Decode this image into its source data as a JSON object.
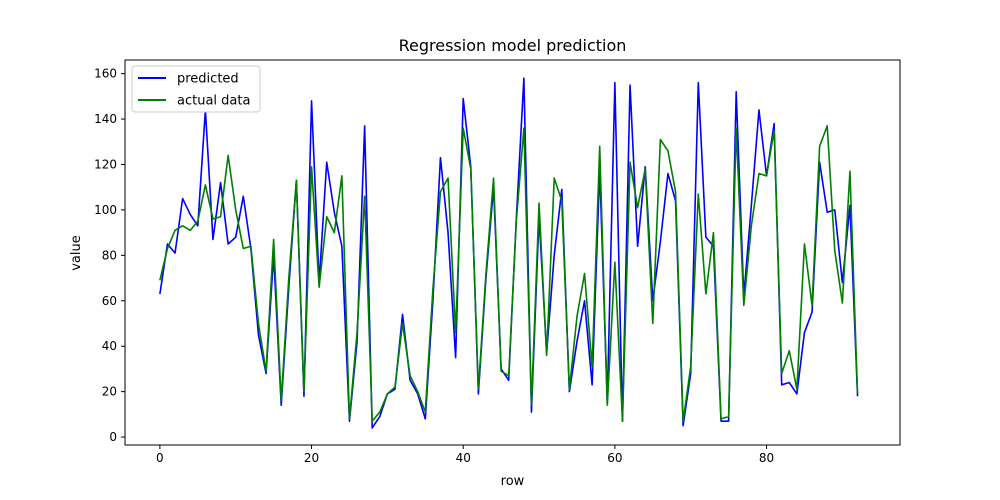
{
  "chart_data": {
    "type": "line",
    "title": "Regression model prediction",
    "xlabel": "row",
    "ylabel": "value",
    "xlim": [
      -4.6,
      97.6
    ],
    "ylim": [
      -3.5,
      166
    ],
    "xticks": [
      0,
      20,
      40,
      60,
      80
    ],
    "yticks": [
      0,
      20,
      40,
      60,
      80,
      100,
      120,
      140,
      160
    ],
    "grid": false,
    "legend_position": "top-left",
    "series": [
      {
        "name": "predicted",
        "color": "#0000ff",
        "values": [
          63,
          85,
          81,
          105,
          98,
          93,
          144,
          87,
          112,
          85,
          88,
          106,
          83,
          45,
          28,
          80,
          14,
          66,
          113,
          18,
          148,
          68,
          121,
          99,
          84,
          7,
          42,
          137,
          4,
          9,
          19,
          21,
          54,
          25,
          19,
          8,
          60,
          123,
          90,
          35,
          149,
          119,
          19,
          70,
          110,
          30,
          25,
          96,
          158,
          11,
          97,
          37,
          80,
          109,
          20,
          42,
          60,
          23,
          118,
          15,
          156,
          7,
          155,
          84,
          119,
          60,
          86,
          116,
          104,
          5,
          28,
          156,
          88,
          84,
          7,
          7,
          152,
          62,
          102,
          144,
          115,
          138,
          23,
          24,
          19,
          46,
          55,
          121,
          99,
          100,
          68,
          102,
          18
        ]
      },
      {
        "name": "actual data",
        "color": "#008000",
        "values": [
          69,
          83,
          91,
          93,
          91,
          95,
          111,
          96,
          97,
          124,
          100,
          83,
          84,
          50,
          29,
          87,
          16,
          70,
          113,
          20,
          119,
          66,
          97,
          90,
          115,
          8,
          46,
          106,
          7,
          11,
          19,
          22,
          50,
          27,
          20,
          11,
          65,
          108,
          114,
          46,
          136,
          118,
          21,
          72,
          114,
          29,
          27,
          95,
          136,
          14,
          103,
          36,
          114,
          104,
          21,
          53,
          72,
          31,
          128,
          14,
          77,
          7,
          121,
          101,
          118,
          50,
          131,
          126,
          108,
          7,
          31,
          107,
          63,
          90,
          8,
          9,
          136,
          58,
          93,
          116,
          115,
          135,
          28,
          38,
          21,
          85,
          58,
          128,
          137,
          82,
          59,
          117,
          19
        ]
      }
    ]
  }
}
